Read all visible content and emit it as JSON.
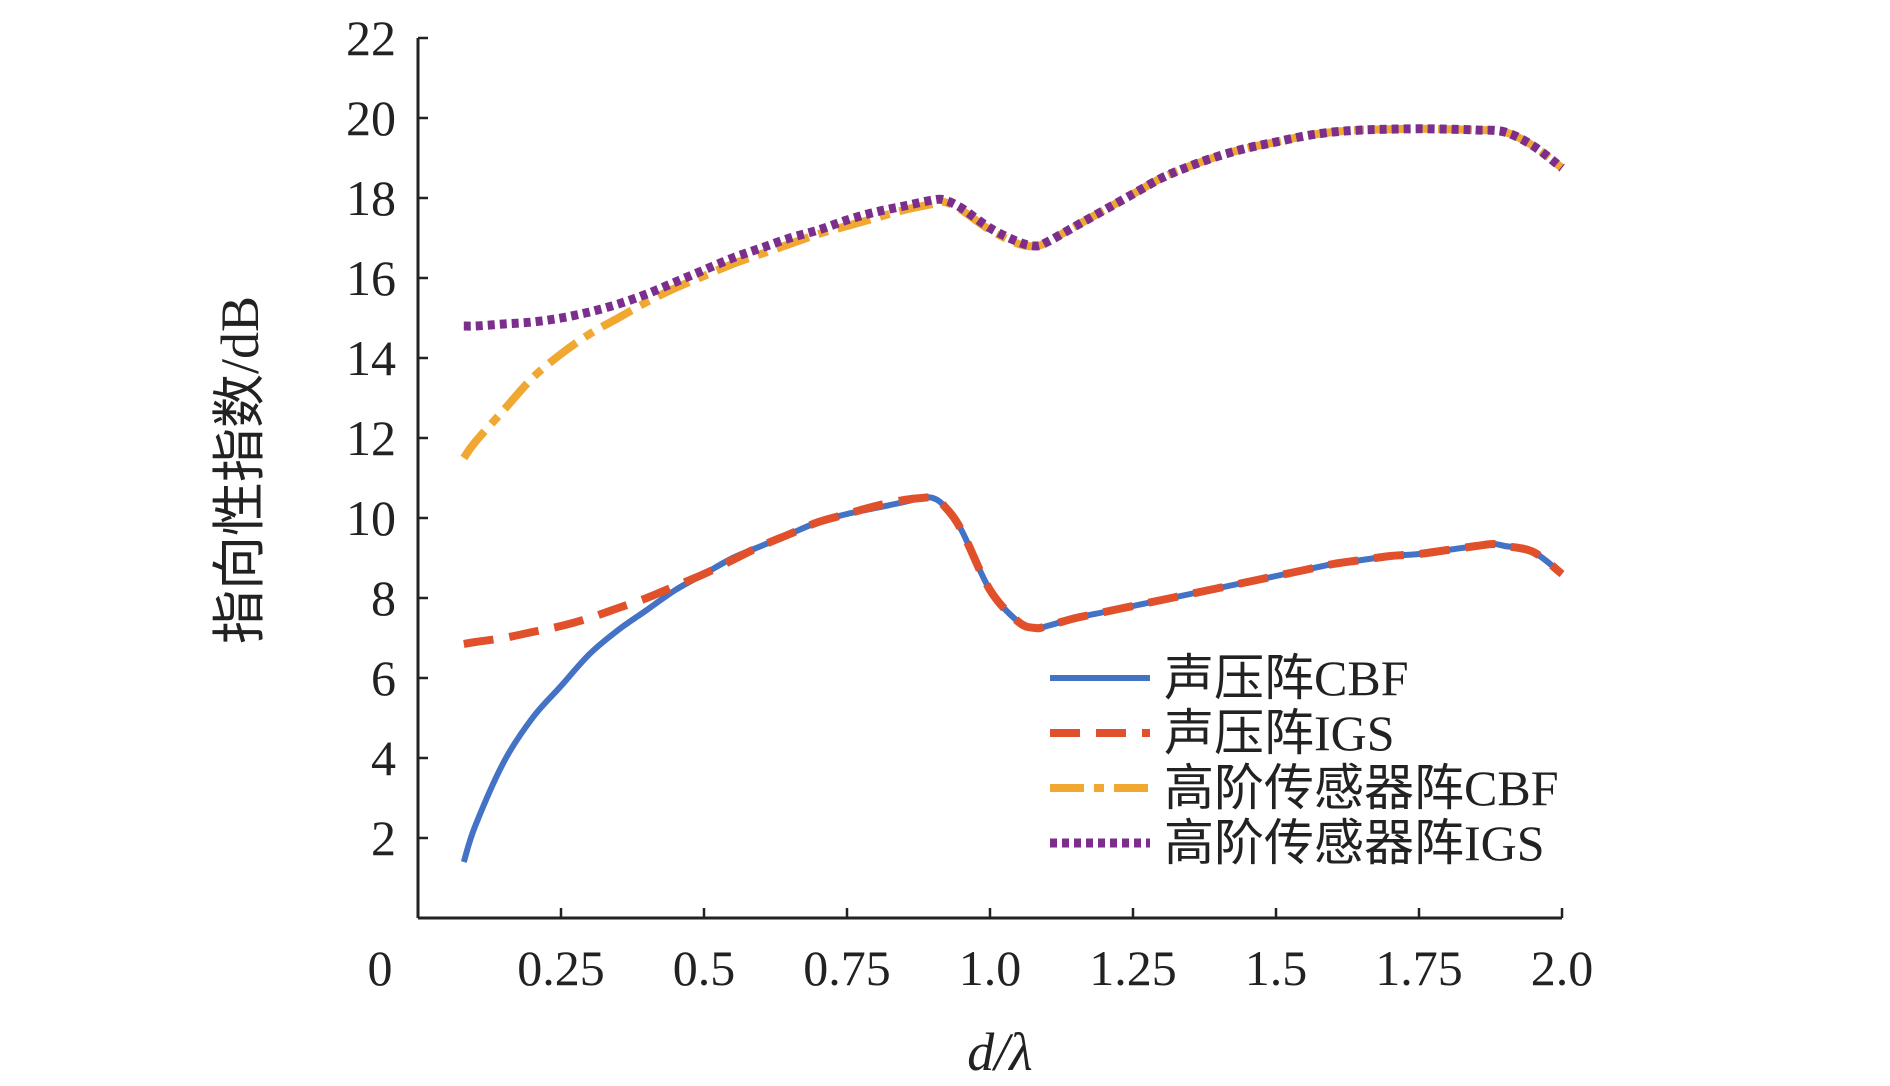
{
  "chart_data": {
    "type": "line",
    "title": "",
    "xlabel": "d/λ",
    "ylabel": "指向性指数/dB",
    "xlim": [
      0,
      2.0
    ],
    "ylim": [
      0,
      22
    ],
    "x_tick_labels": [
      {
        "value": 0,
        "label": "0"
      },
      {
        "value": 0.25,
        "label": "0.25"
      },
      {
        "value": 0.5,
        "label": "0.5"
      },
      {
        "value": 0.75,
        "label": "0.75"
      },
      {
        "value": 1.0,
        "label": "1.0"
      },
      {
        "value": 1.25,
        "label": "1.25"
      },
      {
        "value": 1.5,
        "label": "1.5"
      },
      {
        "value": 1.75,
        "label": "1.75"
      },
      {
        "value": 2.0,
        "label": "2.0"
      }
    ],
    "y_tick_labels": [
      {
        "value": 2,
        "label": "2"
      },
      {
        "value": 4,
        "label": "4"
      },
      {
        "value": 6,
        "label": "6"
      },
      {
        "value": 8,
        "label": "8"
      },
      {
        "value": 10,
        "label": "10"
      },
      {
        "value": 12,
        "label": "12"
      },
      {
        "value": 14,
        "label": "14"
      },
      {
        "value": 16,
        "label": "16"
      },
      {
        "value": 18,
        "label": "18"
      },
      {
        "value": 20,
        "label": "20"
      },
      {
        "value": 22,
        "label": "22"
      }
    ],
    "grid": false,
    "legend_position": "bottom-right",
    "series": [
      {
        "name": "声压阵CBF",
        "color": "#4472C4",
        "style": "solid",
        "x": [
          0.08,
          0.1,
          0.15,
          0.2,
          0.25,
          0.3,
          0.35,
          0.4,
          0.45,
          0.5,
          0.55,
          0.6,
          0.65,
          0.7,
          0.75,
          0.8,
          0.85,
          0.88,
          0.9,
          0.92,
          0.95,
          1.0,
          1.05,
          1.08,
          1.1,
          1.15,
          1.2,
          1.25,
          1.3,
          1.35,
          1.4,
          1.45,
          1.5,
          1.55,
          1.6,
          1.65,
          1.7,
          1.75,
          1.8,
          1.85,
          1.88,
          1.9,
          1.95,
          2.0
        ],
        "y": [
          1.4,
          2.3,
          3.9,
          5.0,
          5.8,
          6.6,
          7.2,
          7.7,
          8.2,
          8.6,
          9.0,
          9.3,
          9.6,
          9.9,
          10.1,
          10.25,
          10.4,
          10.5,
          10.5,
          10.3,
          9.7,
          8.2,
          7.4,
          7.25,
          7.3,
          7.5,
          7.65,
          7.8,
          7.95,
          8.1,
          8.25,
          8.4,
          8.55,
          8.7,
          8.85,
          8.95,
          9.05,
          9.1,
          9.2,
          9.3,
          9.35,
          9.3,
          9.15,
          8.6
        ]
      },
      {
        "name": "声压阵IGS",
        "color": "#E0512B",
        "style": "dashed",
        "x": [
          0.08,
          0.1,
          0.15,
          0.2,
          0.25,
          0.3,
          0.35,
          0.4,
          0.45,
          0.5,
          0.55,
          0.6,
          0.65,
          0.7,
          0.75,
          0.8,
          0.85,
          0.88,
          0.9,
          0.92,
          0.95,
          1.0,
          1.05,
          1.08,
          1.1,
          1.15,
          1.2,
          1.25,
          1.3,
          1.35,
          1.4,
          1.45,
          1.5,
          1.55,
          1.6,
          1.65,
          1.7,
          1.75,
          1.8,
          1.85,
          1.88,
          1.9,
          1.95,
          2.0
        ],
        "y": [
          6.85,
          6.9,
          7.0,
          7.15,
          7.3,
          7.5,
          7.75,
          8.0,
          8.3,
          8.6,
          8.95,
          9.3,
          9.6,
          9.9,
          10.1,
          10.3,
          10.45,
          10.5,
          10.5,
          10.3,
          9.7,
          8.2,
          7.4,
          7.25,
          7.3,
          7.5,
          7.65,
          7.8,
          7.95,
          8.1,
          8.25,
          8.4,
          8.55,
          8.7,
          8.85,
          8.95,
          9.05,
          9.1,
          9.2,
          9.3,
          9.35,
          9.3,
          9.15,
          8.6
        ]
      },
      {
        "name": "高阶传感器阵CBF",
        "color": "#F0A830",
        "style": "dashdot",
        "x": [
          0.08,
          0.1,
          0.15,
          0.2,
          0.25,
          0.3,
          0.35,
          0.4,
          0.45,
          0.5,
          0.55,
          0.6,
          0.65,
          0.7,
          0.75,
          0.8,
          0.85,
          0.9,
          0.92,
          0.95,
          1.0,
          1.05,
          1.08,
          1.1,
          1.15,
          1.2,
          1.25,
          1.3,
          1.35,
          1.4,
          1.45,
          1.5,
          1.55,
          1.6,
          1.65,
          1.7,
          1.75,
          1.8,
          1.85,
          1.9,
          1.95,
          2.0
        ],
        "y": [
          11.5,
          11.9,
          12.7,
          13.5,
          14.1,
          14.6,
          15.0,
          15.4,
          15.75,
          16.05,
          16.35,
          16.6,
          16.85,
          17.1,
          17.3,
          17.5,
          17.7,
          17.85,
          17.9,
          17.7,
          17.2,
          16.85,
          16.8,
          16.9,
          17.3,
          17.7,
          18.1,
          18.5,
          18.8,
          19.05,
          19.25,
          19.4,
          19.55,
          19.65,
          19.7,
          19.72,
          19.73,
          19.72,
          19.7,
          19.65,
          19.3,
          18.75
        ]
      },
      {
        "name": "高阶传感器阵IGS",
        "color": "#7B2E8C",
        "style": "dotted",
        "x": [
          0.08,
          0.1,
          0.15,
          0.2,
          0.25,
          0.3,
          0.35,
          0.4,
          0.45,
          0.5,
          0.55,
          0.6,
          0.65,
          0.7,
          0.75,
          0.8,
          0.85,
          0.9,
          0.92,
          0.95,
          1.0,
          1.05,
          1.08,
          1.1,
          1.15,
          1.2,
          1.25,
          1.3,
          1.35,
          1.4,
          1.45,
          1.5,
          1.55,
          1.6,
          1.65,
          1.7,
          1.75,
          1.8,
          1.85,
          1.9,
          1.95,
          2.0
        ],
        "y": [
          14.8,
          14.8,
          14.85,
          14.9,
          15.0,
          15.15,
          15.35,
          15.6,
          15.9,
          16.2,
          16.5,
          16.75,
          17.0,
          17.2,
          17.45,
          17.65,
          17.8,
          17.95,
          17.95,
          17.75,
          17.25,
          16.9,
          16.8,
          16.9,
          17.3,
          17.7,
          18.1,
          18.5,
          18.8,
          19.05,
          19.25,
          19.4,
          19.55,
          19.65,
          19.7,
          19.72,
          19.73,
          19.72,
          19.7,
          19.65,
          19.3,
          18.75
        ]
      }
    ]
  }
}
